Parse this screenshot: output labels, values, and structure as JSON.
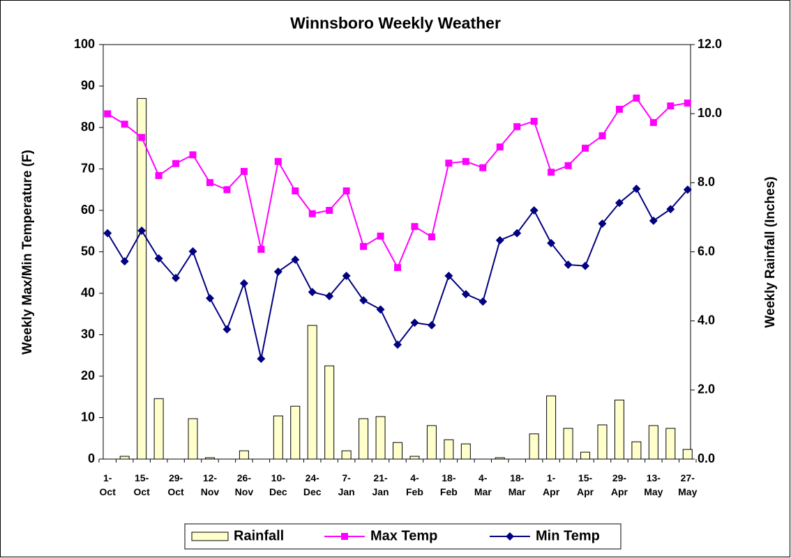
{
  "chart_data": {
    "type": "combo",
    "title": "Winnsboro Weekly Weather",
    "y_label": "Weekly Max/Min Temperature (F)",
    "y2_label": "Weekly Rainfall (Inches)",
    "categories": [
      "1- Oct",
      null,
      "15- Oct",
      null,
      "29- Oct",
      null,
      "12- Nov",
      null,
      "26- Nov",
      null,
      "10- Dec",
      null,
      "24- Dec",
      null,
      "7- Jan",
      null,
      "21- Jan",
      null,
      "4- Feb",
      null,
      "18- Feb",
      null,
      "4- Mar",
      null,
      "18- Mar",
      null,
      "1- Apr",
      null,
      "15- Apr",
      null,
      "29- Apr",
      null,
      "13- May",
      null,
      "27- May"
    ],
    "series": [
      {
        "name": "Rainfall",
        "type": "bar",
        "axis": "y2",
        "color": "#ffffcc",
        "values": [
          0,
          0.08,
          10.44,
          1.75,
          0,
          1.17,
          0.04,
          0,
          0.24,
          0,
          1.25,
          1.53,
          3.87,
          2.7,
          0.24,
          1.17,
          1.23,
          0.48,
          0.08,
          0.97,
          0.56,
          0.44,
          0,
          0.04,
          0,
          0.73,
          1.83,
          0.89,
          0.2,
          0.99,
          1.71,
          0.5,
          0.97,
          0.89,
          0.28
        ]
      },
      {
        "name": "Max Temp",
        "type": "line",
        "marker": "square",
        "color": "#ff00ff",
        "values": [
          83.3,
          80.8,
          77.6,
          68.4,
          71.3,
          73.4,
          66.7,
          65.0,
          69.4,
          50.6,
          71.8,
          64.7,
          59.2,
          60.0,
          64.7,
          51.3,
          53.8,
          46.2,
          56.1,
          53.6,
          71.4,
          71.8,
          70.3,
          75.3,
          80.2,
          81.5,
          69.2,
          70.8,
          75.0,
          78.0,
          84.4,
          87.1,
          81.2,
          85.2,
          85.9
        ]
      },
      {
        "name": "Min Temp",
        "type": "line",
        "marker": "diamond",
        "color": "#000080",
        "values": [
          54.5,
          47.7,
          55.1,
          48.4,
          43.7,
          50.1,
          38.8,
          31.3,
          42.4,
          24.2,
          45.2,
          48.1,
          40.3,
          39.3,
          44.2,
          38.3,
          36.1,
          27.6,
          32.9,
          32.3,
          44.2,
          39.8,
          38.0,
          52.8,
          54.5,
          60.0,
          52.1,
          46.9,
          46.6,
          56.8,
          61.8,
          65.2,
          57.5,
          60.3,
          65.0
        ]
      }
    ],
    "ylim": [
      0,
      100
    ],
    "yticks": [
      0,
      10,
      20,
      30,
      40,
      50,
      60,
      70,
      80,
      90,
      100
    ],
    "y2lim": [
      0,
      12
    ],
    "y2ticks": [
      {
        "value": 0,
        "label": "0.0"
      },
      {
        "value": 2,
        "label": "2.0"
      },
      {
        "value": 4,
        "label": "4.0"
      },
      {
        "value": 6,
        "label": "6.0"
      },
      {
        "value": 8,
        "label": "8.0"
      },
      {
        "value": 10,
        "label": "10.0"
      },
      {
        "value": 12,
        "label": "12.0"
      }
    ],
    "legend": "bottom"
  }
}
